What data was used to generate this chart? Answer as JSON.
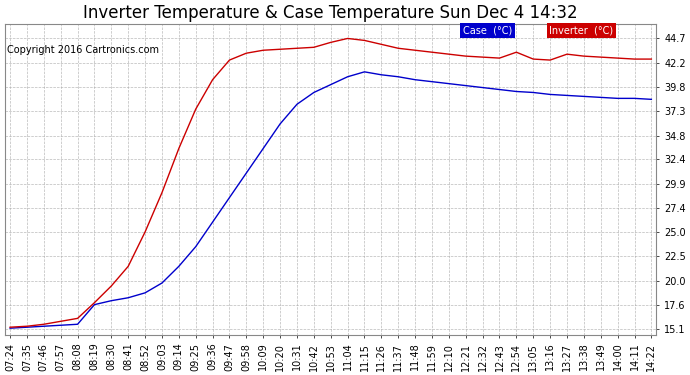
{
  "title": "Inverter Temperature & Case Temperature Sun Dec 4 14:32",
  "copyright": "Copyright 2016 Cartronics.com",
  "background_color": "#ffffff",
  "plot_bg_color": "#ffffff",
  "grid_color": "#aaaaaa",
  "yticks": [
    15.1,
    17.6,
    20.0,
    22.5,
    25.0,
    27.4,
    29.9,
    32.4,
    34.8,
    37.3,
    39.8,
    42.2,
    44.7
  ],
  "xtick_labels": [
    "07:24",
    "07:35",
    "07:46",
    "07:57",
    "08:08",
    "08:19",
    "08:30",
    "08:41",
    "08:52",
    "09:03",
    "09:14",
    "09:25",
    "09:36",
    "09:47",
    "09:58",
    "10:09",
    "10:20",
    "10:31",
    "10:42",
    "10:53",
    "11:04",
    "11:15",
    "11:26",
    "11:37",
    "11:48",
    "11:59",
    "12:10",
    "12:21",
    "12:32",
    "12:43",
    "12:54",
    "13:05",
    "13:16",
    "13:27",
    "13:38",
    "13:49",
    "14:00",
    "14:11",
    "14:22"
  ],
  "case_color": "#0000cc",
  "inverter_color": "#cc0000",
  "legend_case_bg": "#0000cc",
  "legend_inverter_bg": "#cc0000",
  "legend_text_color": "#ffffff",
  "case_label": "Case  (°C)",
  "inverter_label": "Inverter  (°C)",
  "case_data": [
    15.2,
    15.3,
    15.4,
    15.5,
    15.6,
    17.6,
    18.0,
    18.3,
    18.8,
    19.8,
    21.5,
    23.5,
    26.0,
    28.5,
    31.0,
    33.5,
    36.0,
    38.0,
    39.2,
    40.0,
    40.8,
    41.3,
    41.0,
    40.8,
    40.5,
    40.3,
    40.1,
    39.9,
    39.7,
    39.5,
    39.3,
    39.2,
    39.0,
    38.9,
    38.8,
    38.7,
    38.6,
    38.6,
    38.5
  ],
  "inverter_data": [
    15.3,
    15.4,
    15.6,
    15.9,
    16.2,
    17.8,
    19.5,
    21.5,
    25.0,
    29.0,
    33.5,
    37.5,
    40.5,
    42.5,
    43.2,
    43.5,
    43.6,
    43.7,
    43.8,
    44.3,
    44.7,
    44.5,
    44.1,
    43.7,
    43.5,
    43.3,
    43.1,
    42.9,
    42.8,
    42.7,
    43.3,
    42.6,
    42.5,
    43.1,
    42.9,
    42.8,
    42.7,
    42.6,
    42.6
  ],
  "ylim": [
    14.5,
    46.2
  ],
  "title_fontsize": 12,
  "tick_fontsize": 7,
  "copyright_fontsize": 7,
  "line_width": 1.0
}
